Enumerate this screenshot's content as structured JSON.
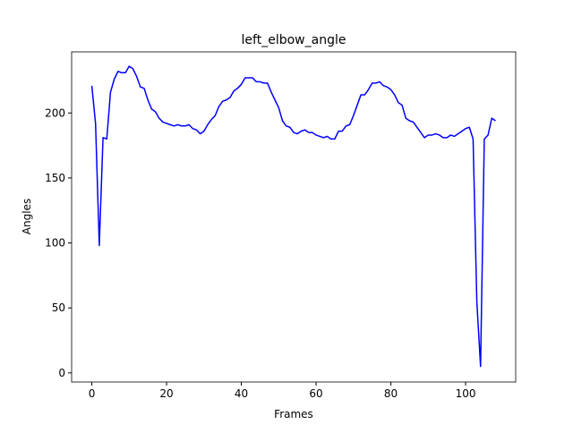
{
  "chart_data": {
    "type": "line",
    "title": "left_elbow_angle",
    "x_label": "Frames",
    "y_label": "Angles",
    "x": [
      0,
      1,
      2,
      3,
      4,
      5,
      6,
      7,
      8,
      9,
      10,
      11,
      12,
      13,
      14,
      15,
      16,
      17,
      18,
      19,
      20,
      21,
      22,
      23,
      24,
      25,
      26,
      27,
      28,
      29,
      30,
      31,
      32,
      33,
      34,
      35,
      36,
      37,
      38,
      39,
      40,
      41,
      42,
      43,
      44,
      45,
      46,
      47,
      48,
      49,
      50,
      51,
      52,
      53,
      54,
      55,
      56,
      57,
      58,
      59,
      60,
      61,
      62,
      63,
      64,
      65,
      66,
      67,
      68,
      69,
      70,
      71,
      72,
      73,
      74,
      75,
      76,
      77,
      78,
      79,
      80,
      81,
      82,
      83,
      84,
      85,
      86,
      87,
      88,
      89,
      90,
      91,
      92,
      93,
      94,
      95,
      96,
      97,
      98,
      99,
      100,
      101,
      102,
      103,
      104,
      105,
      106,
      107,
      108
    ],
    "series": [
      {
        "name": "left_elbow_angle",
        "color": "#0000ff",
        "values": [
          221,
          192,
          98,
          181,
          180,
          216,
          226,
          232,
          231,
          231,
          236,
          234,
          228,
          220,
          219,
          210,
          203,
          201,
          196,
          193,
          192,
          191,
          190,
          191,
          190,
          190,
          191,
          188,
          187,
          184,
          186,
          191,
          195,
          198,
          205,
          209,
          210,
          212,
          217,
          219,
          222,
          227,
          227,
          227,
          224,
          224,
          223,
          223,
          216,
          210,
          204,
          194,
          190,
          189,
          185,
          184,
          186,
          187,
          185,
          185,
          183,
          182,
          181,
          182,
          180,
          180,
          186,
          186,
          190,
          191,
          198,
          206,
          214,
          214,
          218,
          223,
          223,
          224,
          221,
          220,
          218,
          214,
          208,
          206,
          196,
          194,
          193,
          189,
          185,
          181,
          183,
          183,
          184,
          183,
          181,
          181,
          183,
          182,
          184,
          186,
          188,
          189,
          180,
          55,
          5,
          180,
          183,
          196,
          194
        ]
      }
    ],
    "xlim": [
      -5.4,
      113.4
    ],
    "ylim": [
      -7,
      247
    ],
    "xticks": [
      0,
      20,
      40,
      60,
      80,
      100
    ],
    "yticks": [
      0,
      50,
      100,
      150,
      200
    ],
    "grid": false
  }
}
